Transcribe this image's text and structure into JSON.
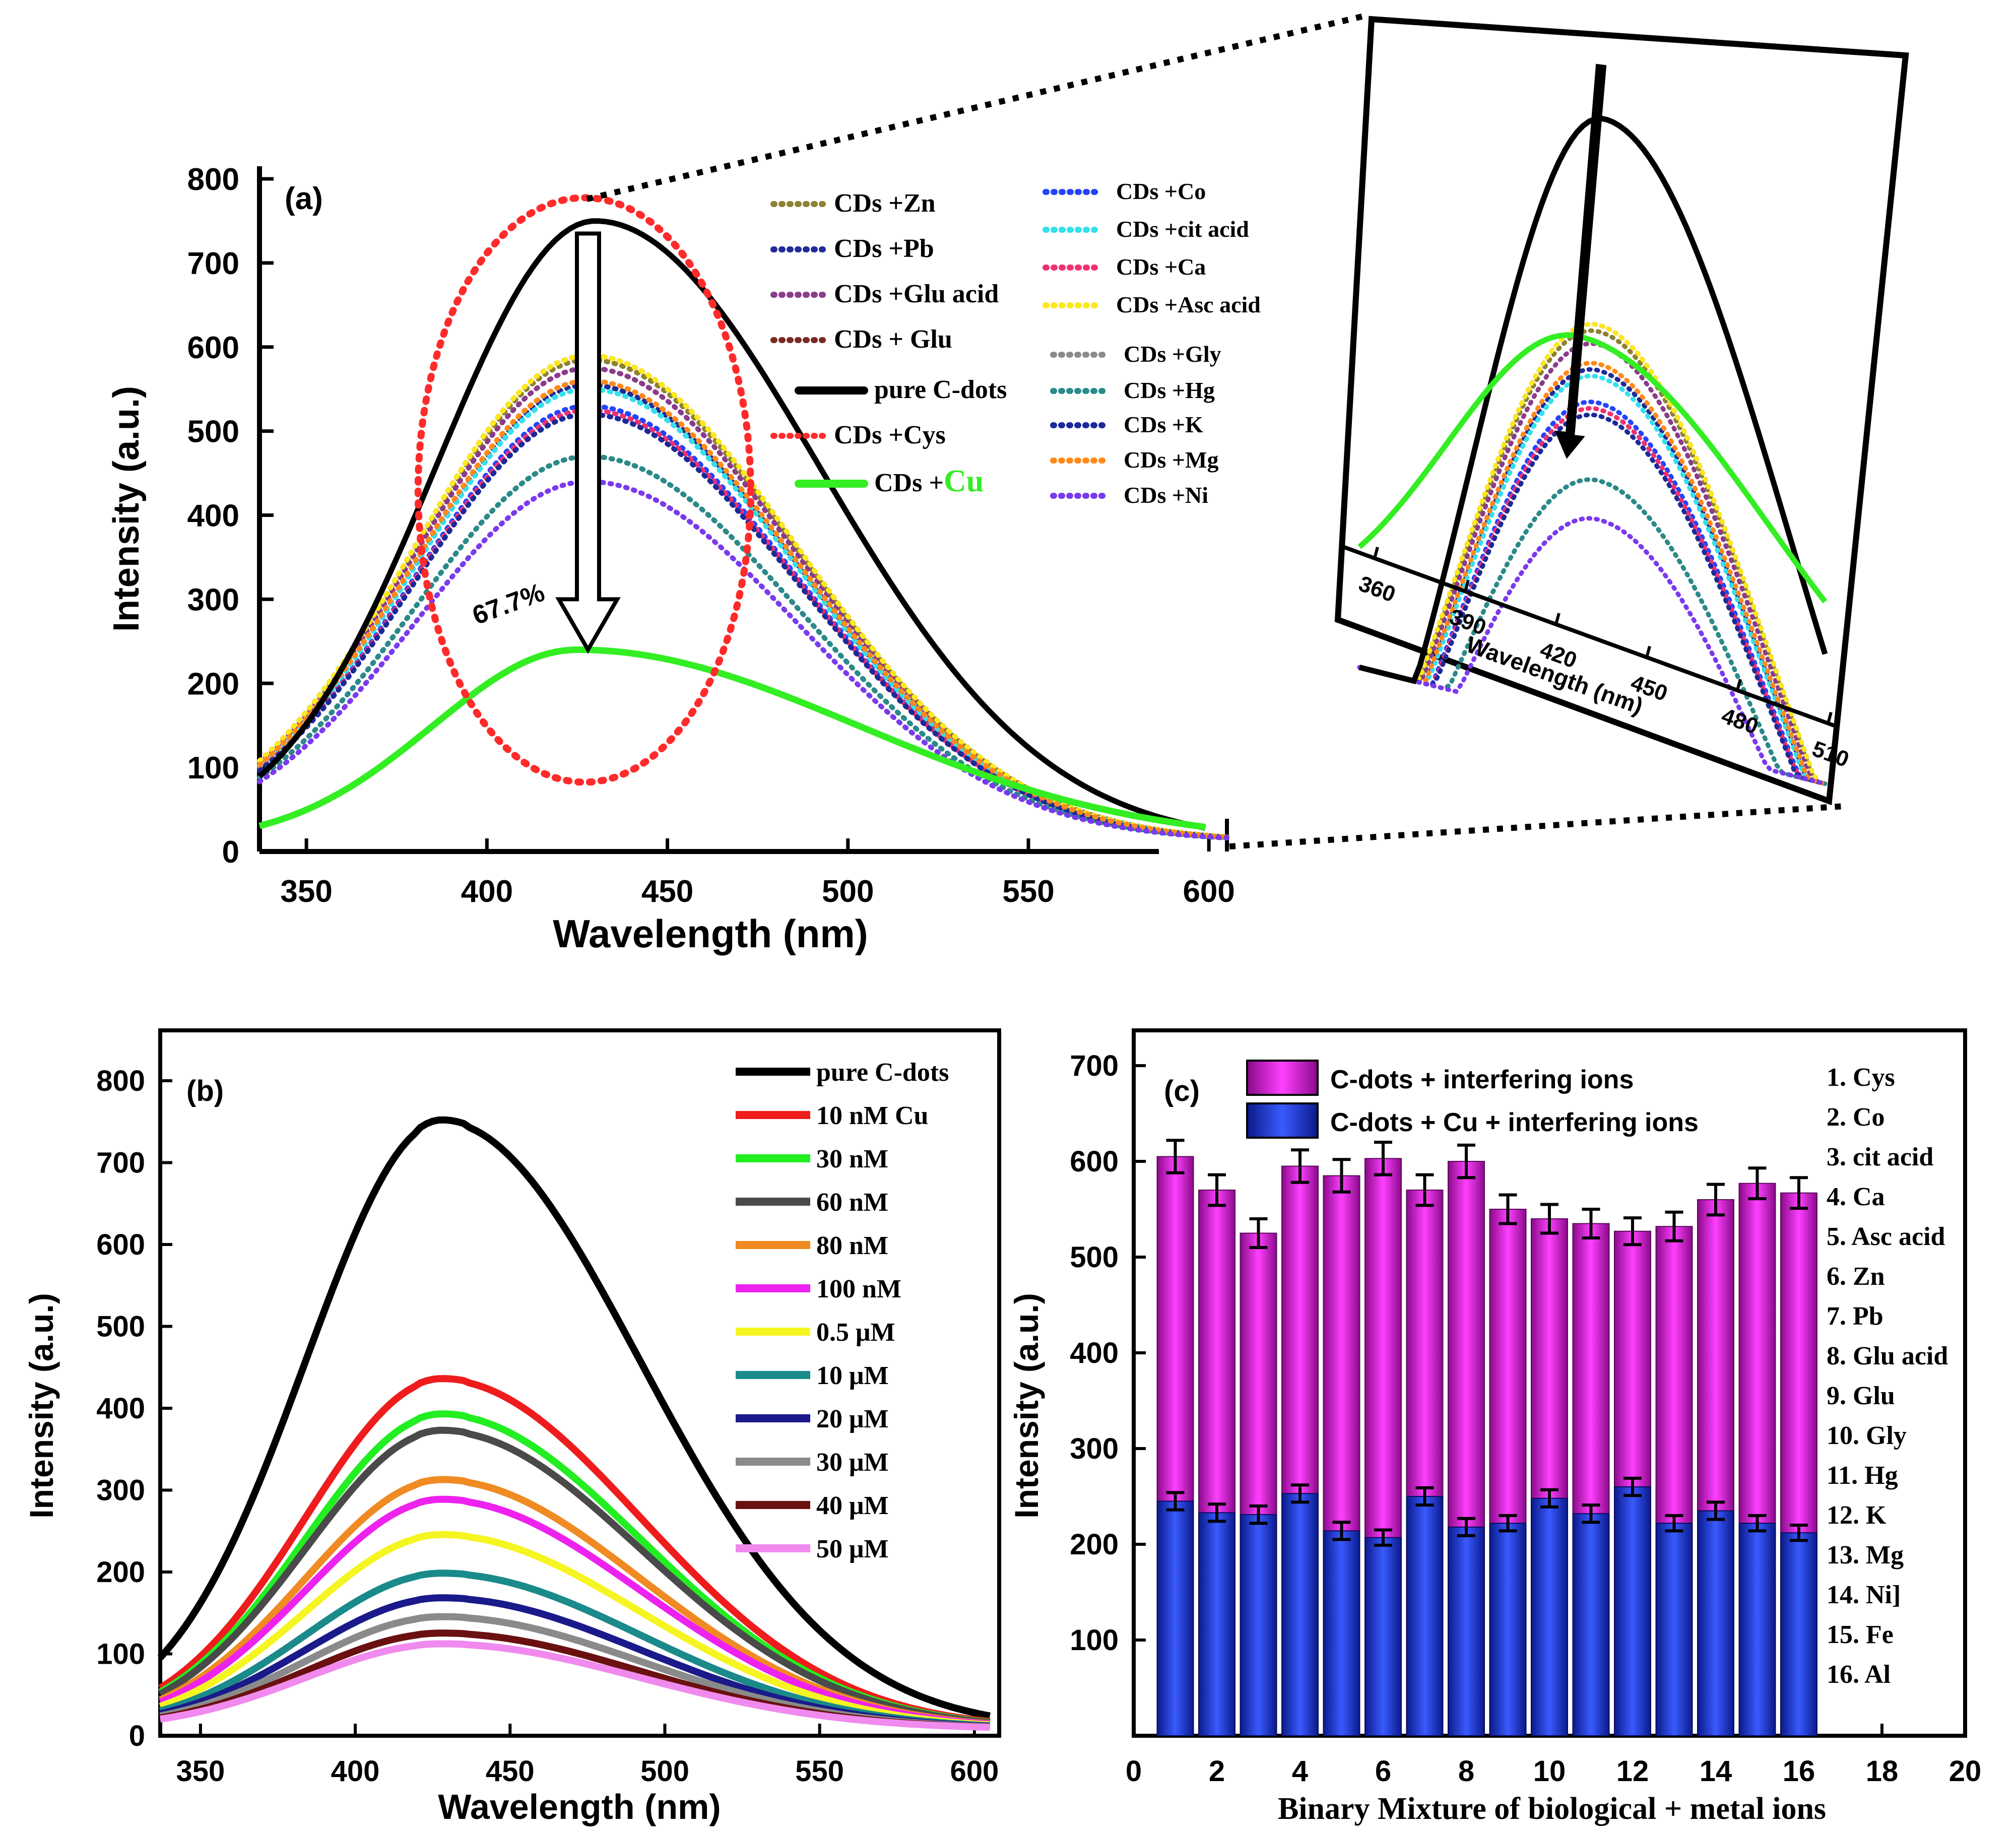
{
  "chart_data": [
    {
      "panel": "(a)",
      "type": "line",
      "xlabel": "Wavelength (nm)",
      "ylabel": "Intensity (a.u.)",
      "xlim": [
        337,
        605
      ],
      "ylim": [
        0,
        800
      ],
      "xticks": [
        350,
        400,
        450,
        500,
        550,
        600
      ],
      "yticks": [
        0,
        100,
        200,
        300,
        400,
        500,
        600,
        700,
        800
      ],
      "annotation": "67.7%",
      "series": [
        {
          "name": "pure C-dots",
          "peak_x": 430,
          "peak": 750,
          "color": "#000000",
          "style": "solid"
        },
        {
          "name": "CDs +Cys",
          "style": "ellipse",
          "color": "#ff2a2a"
        },
        {
          "name": "CDs +Cu",
          "peak_x": 425,
          "peak": 240,
          "color": "#33ee22",
          "style": "solid"
        },
        {
          "name": "CDs +Zn",
          "peak_x": 428,
          "peak": 585,
          "color": "#8c8232",
          "style": "dotted"
        },
        {
          "name": "CDs +Pb",
          "peak_x": 428,
          "peak": 555,
          "color": "#202a9a",
          "style": "dotted"
        },
        {
          "name": "CDs +Glu acid",
          "peak_x": 428,
          "peak": 575,
          "color": "#8a3c8a",
          "style": "dotted"
        },
        {
          "name": "CDs + Glu",
          "peak_x": 428,
          "peak": 590,
          "color": "#7a2a22",
          "style": "dotted"
        },
        {
          "name": "CDs +Co",
          "peak_x": 428,
          "peak": 530,
          "color": "#2244ff",
          "style": "dotted"
        },
        {
          "name": "CDs +cit acid",
          "peak_x": 428,
          "peak": 550,
          "color": "#33e0ee",
          "style": "dotted"
        },
        {
          "name": "CDs +Ca",
          "peak_x": 428,
          "peak": 525,
          "color": "#f03070",
          "style": "dotted"
        },
        {
          "name": "CDs +Asc acid",
          "peak_x": 428,
          "peak": 590,
          "color": "#ffe81a",
          "style": "dotted"
        },
        {
          "name": "CDs +Gly",
          "peak_x": 428,
          "peak": 470,
          "color": "#8a8a8a",
          "style": "dotted"
        },
        {
          "name": "CDs +Hg",
          "peak_x": 428,
          "peak": 470,
          "color": "#2a8a8a",
          "style": "dotted"
        },
        {
          "name": "CDs +K",
          "peak_x": 428,
          "peak": 520,
          "color": "#1a2a9a",
          "style": "dotted"
        },
        {
          "name": "CDs +Mg",
          "peak_x": 428,
          "peak": 560,
          "color": "#ff8a1a",
          "style": "dotted"
        },
        {
          "name": "CDs +Ni",
          "peak_x": 428,
          "peak": 440,
          "color": "#7a3aee",
          "style": "dotted"
        }
      ],
      "legend_left": [
        {
          "label": "CDs +Zn",
          "color": "#8c8232",
          "style": "dotted"
        },
        {
          "label": "CDs +Pb",
          "color": "#202a9a",
          "style": "dotted"
        },
        {
          "label": "CDs +Glu acid",
          "color": "#8a3c8a",
          "style": "dotted"
        },
        {
          "label": "CDs + Glu",
          "color": "#7a2a22",
          "style": "dotted"
        },
        {
          "label": "pure C-dots",
          "color": "#000000",
          "style": "solid"
        },
        {
          "label": "CDs +Cys",
          "color": "#ff2a2a",
          "style": "dotted"
        },
        {
          "label": "CDs +",
          "suffix": "Cu",
          "color": "#33ee22",
          "style": "solid"
        }
      ],
      "legend_right": [
        {
          "label": "CDs +Co",
          "color": "#2244ff",
          "style": "dotted"
        },
        {
          "label": "CDs +cit acid",
          "color": "#33e0ee",
          "style": "dotted"
        },
        {
          "label": "CDs +Ca",
          "color": "#f03070",
          "style": "dotted"
        },
        {
          "label": "CDs +Asc acid",
          "color": "#ffe81a",
          "style": "dotted"
        },
        {
          "label": "CDs +Gly",
          "color": "#8a8a8a",
          "style": "dotted"
        },
        {
          "label": "CDs +Hg",
          "color": "#2a8a8a",
          "style": "dotted"
        },
        {
          "label": "CDs +K",
          "color": "#1a2a9a",
          "style": "dotted"
        },
        {
          "label": "CDs +Mg",
          "color": "#ff8a1a",
          "style": "dotted"
        },
        {
          "label": "CDs +Ni",
          "color": "#7a3aee",
          "style": "dotted"
        }
      ],
      "inset": {
        "xlabel": "Wavelength (nm)",
        "xlim": [
          352,
          512
        ],
        "xticks": [
          360,
          390,
          420,
          450,
          480,
          510
        ]
      }
    },
    {
      "panel": "(b)",
      "type": "line",
      "xlabel": "Wavelength (nm)",
      "ylabel": "Intensity (a.u.)",
      "xlim": [
        337,
        608
      ],
      "ylim": [
        0,
        800
      ],
      "xticks": [
        350,
        400,
        450,
        500,
        550,
        600
      ],
      "yticks": [
        0,
        100,
        200,
        300,
        400,
        500,
        600,
        700,
        800
      ],
      "series": [
        {
          "name": "pure C-dots",
          "peak": 750,
          "color": "#000000"
        },
        {
          "name": "10 nM Cu",
          "peak": 435,
          "color": "#ee1c1c"
        },
        {
          "name": "30 nM",
          "peak": 392,
          "color": "#22ee22"
        },
        {
          "name": "60 nM",
          "peak": 372,
          "color": "#4a4a4a"
        },
        {
          "name": "80 nM",
          "peak": 312,
          "color": "#f08a22"
        },
        {
          "name": "100 nM",
          "peak": 288,
          "color": "#ee22ee"
        },
        {
          "name": "0.5 μM",
          "peak": 245,
          "color": "#f5f522"
        },
        {
          "name": "10 μM",
          "peak": 198,
          "color": "#1a8a8a"
        },
        {
          "name": "20 μM",
          "peak": 168,
          "color": "#1a1a8a"
        },
        {
          "name": "30 μM",
          "peak": 145,
          "color": "#8a8a8a"
        },
        {
          "name": "40 μM",
          "peak": 125,
          "color": "#6a1010"
        },
        {
          "name": "50 μM",
          "peak": 112,
          "color": "#f08aee"
        }
      ]
    },
    {
      "panel": "(c)",
      "type": "bar",
      "xlabel": "Binary Mixture of biological + metal ions",
      "ylabel": "Intensity (a.u.)",
      "xlim": [
        0,
        20
      ],
      "ylim": [
        0,
        700
      ],
      "xticks": [
        0,
        2,
        4,
        6,
        8,
        10,
        12,
        14,
        16,
        18,
        20
      ],
      "yticks": [
        100,
        200,
        300,
        400,
        500,
        600,
        700
      ],
      "categories": [
        1,
        2,
        3,
        4,
        5,
        6,
        7,
        8,
        9,
        10,
        11,
        12,
        13,
        14,
        15,
        16
      ],
      "series": [
        {
          "name": "C-dots + interfering ions",
          "color": "#d020d0",
          "values": [
            605,
            570,
            525,
            595,
            585,
            603,
            570,
            600,
            550,
            540,
            535,
            527,
            532,
            560,
            577,
            567
          ],
          "errors": [
            17,
            16,
            15,
            17,
            17,
            17,
            16,
            17,
            15,
            15,
            15,
            14,
            15,
            16,
            16,
            16
          ]
        },
        {
          "name": "C-dots + Cu + interfering ions",
          "color": "#2040ff",
          "values": [
            245,
            233,
            231,
            253,
            214,
            207,
            250,
            218,
            222,
            248,
            232,
            260,
            222,
            235,
            222,
            212
          ],
          "errors": [
            9,
            9,
            9,
            9,
            9,
            8,
            9,
            9,
            8,
            9,
            9,
            9,
            8,
            9,
            8,
            8
          ]
        }
      ],
      "side_list": [
        "1. Cys",
        "2. Co",
        "3. cit acid",
        "4. Ca",
        "5. Asc acid",
        "6. Zn",
        "7. Pb",
        "8. Glu acid",
        "9. Glu",
        "10. Gly",
        "11. Hg",
        "12. K",
        "13. Mg",
        "14. Ni]",
        "15. Fe",
        "16. Al"
      ]
    }
  ]
}
